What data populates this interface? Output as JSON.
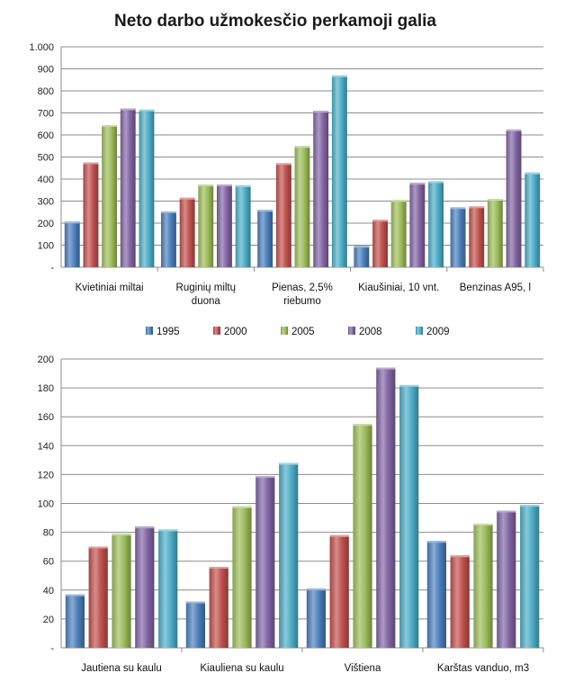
{
  "title": "Neto darbo užmokesčio perkamoji galia",
  "legend": [
    "1995",
    "2000",
    "2005",
    "2008",
    "2009"
  ],
  "colors": {
    "1995": "#4a7ebb",
    "2000": "#c0504d",
    "2005": "#9bbb59",
    "2008": "#8064a2",
    "2009": "#4bacc6"
  },
  "chart_data": [
    {
      "type": "bar",
      "title": "Neto darbo užmokesčio perkamoji galia",
      "categories": [
        [
          "Kvietiniai miltai"
        ],
        [
          "Ruginių miltų",
          "duona"
        ],
        [
          "Pienas, 2,5%",
          "riebumo"
        ],
        [
          "Kiaušiniai, 10 vnt."
        ],
        [
          "Benzinas A95, l"
        ]
      ],
      "yticks": [
        "-",
        "100",
        "200",
        "300",
        "400",
        "500",
        "600",
        "700",
        "800",
        "900",
        "1.000"
      ],
      "ylim": [
        0,
        1000
      ],
      "grid": true,
      "legend_position": "bottom",
      "series": [
        {
          "name": "1995",
          "values": [
            207,
            253,
            260,
            97,
            272
          ]
        },
        {
          "name": "2000",
          "values": [
            475,
            315,
            472,
            215,
            276
          ]
        },
        {
          "name": "2005",
          "values": [
            645,
            375,
            550,
            305,
            310
          ]
        },
        {
          "name": "2008",
          "values": [
            720,
            375,
            710,
            383,
            625
          ]
        },
        {
          "name": "2009",
          "values": [
            715,
            372,
            870,
            390,
            430
          ]
        }
      ]
    },
    {
      "type": "bar",
      "categories": [
        [
          "Jautiena su kaulu"
        ],
        [
          "Kiauliena su kaulu"
        ],
        [
          "Vištiena"
        ],
        [
          "Karštas vanduo, m3"
        ]
      ],
      "yticks": [
        "-",
        "20",
        "40",
        "60",
        "80",
        "100",
        "120",
        "140",
        "160",
        "180",
        "200"
      ],
      "ylim": [
        0,
        200
      ],
      "grid": true,
      "series": [
        {
          "name": "1995",
          "values": [
            37,
            32,
            41,
            74
          ]
        },
        {
          "name": "2000",
          "values": [
            70,
            56,
            78,
            64
          ]
        },
        {
          "name": "2005",
          "values": [
            79,
            98,
            155,
            86
          ]
        },
        {
          "name": "2008",
          "values": [
            84,
            119,
            194,
            95
          ]
        },
        {
          "name": "2009",
          "values": [
            82,
            128,
            182,
            99
          ]
        }
      ]
    }
  ]
}
